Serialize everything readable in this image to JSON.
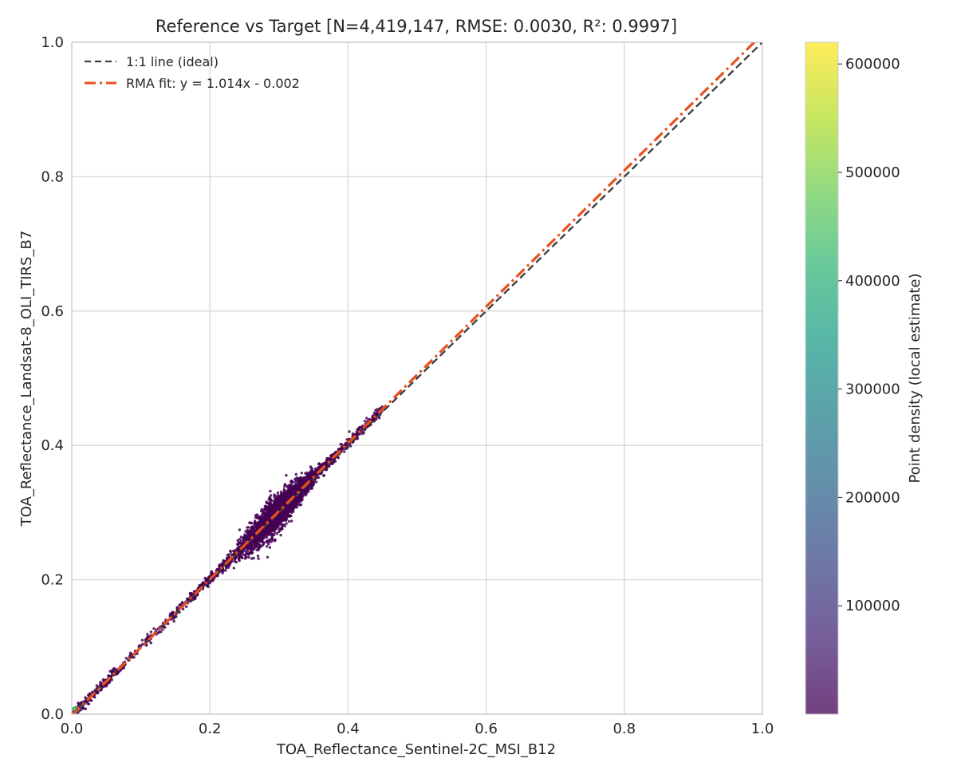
{
  "chart_data": {
    "type": "scatter",
    "title": "Reference vs Target [N=4,419,147, RMSE: 0.0030, R²: 0.9997]",
    "xlabel": "TOA_Reflectance_Sentinel-2C_MSI_B12",
    "ylabel": "TOA_Reflectance_Landsat-8_OLI_TIRS_B7",
    "xlim": [
      0,
      1
    ],
    "ylim": [
      0,
      1
    ],
    "x_ticks": [
      "0.0",
      "0.2",
      "0.4",
      "0.6",
      "0.8",
      "1.0"
    ],
    "y_ticks": [
      "0.0",
      "0.2",
      "0.4",
      "0.6",
      "0.8",
      "1.0"
    ],
    "grid": true,
    "legend": {
      "placement": "top-left",
      "entries": [
        {
          "label": "1:1 line (ideal)",
          "color": "#404040",
          "style": "dashed"
        },
        {
          "label": "RMA fit: y = 1.014x - 0.002",
          "color": "#e8501c",
          "style": "dashdot"
        }
      ]
    },
    "lines": [
      {
        "name": "1:1 line (ideal)",
        "slope": 1.0,
        "intercept": 0.0
      },
      {
        "name": "RMA fit: y = 1.014x - 0.002",
        "slope": 1.014,
        "intercept": -0.002
      }
    ],
    "scatter_points": {
      "count": 4419147,
      "color": "#440154",
      "x_range": [
        0.0,
        0.45
      ],
      "y_range": [
        0.0,
        0.455
      ],
      "dense_core_x_range": [
        0.22,
        0.38
      ]
    },
    "colorbar": {
      "label": "Point density (local estimate)",
      "ticks": [
        "100000",
        "200000",
        "300000",
        "400000",
        "500000",
        "600000"
      ],
      "tick_values": [
        100000,
        200000,
        300000,
        400000,
        500000,
        600000
      ],
      "range": [
        0,
        620000
      ],
      "colormap": [
        "#440154",
        "#482878",
        "#3e4989",
        "#31688e",
        "#26828e",
        "#1f9e89",
        "#35b779",
        "#6ece58",
        "#b5de2b",
        "#fde725"
      ]
    }
  }
}
